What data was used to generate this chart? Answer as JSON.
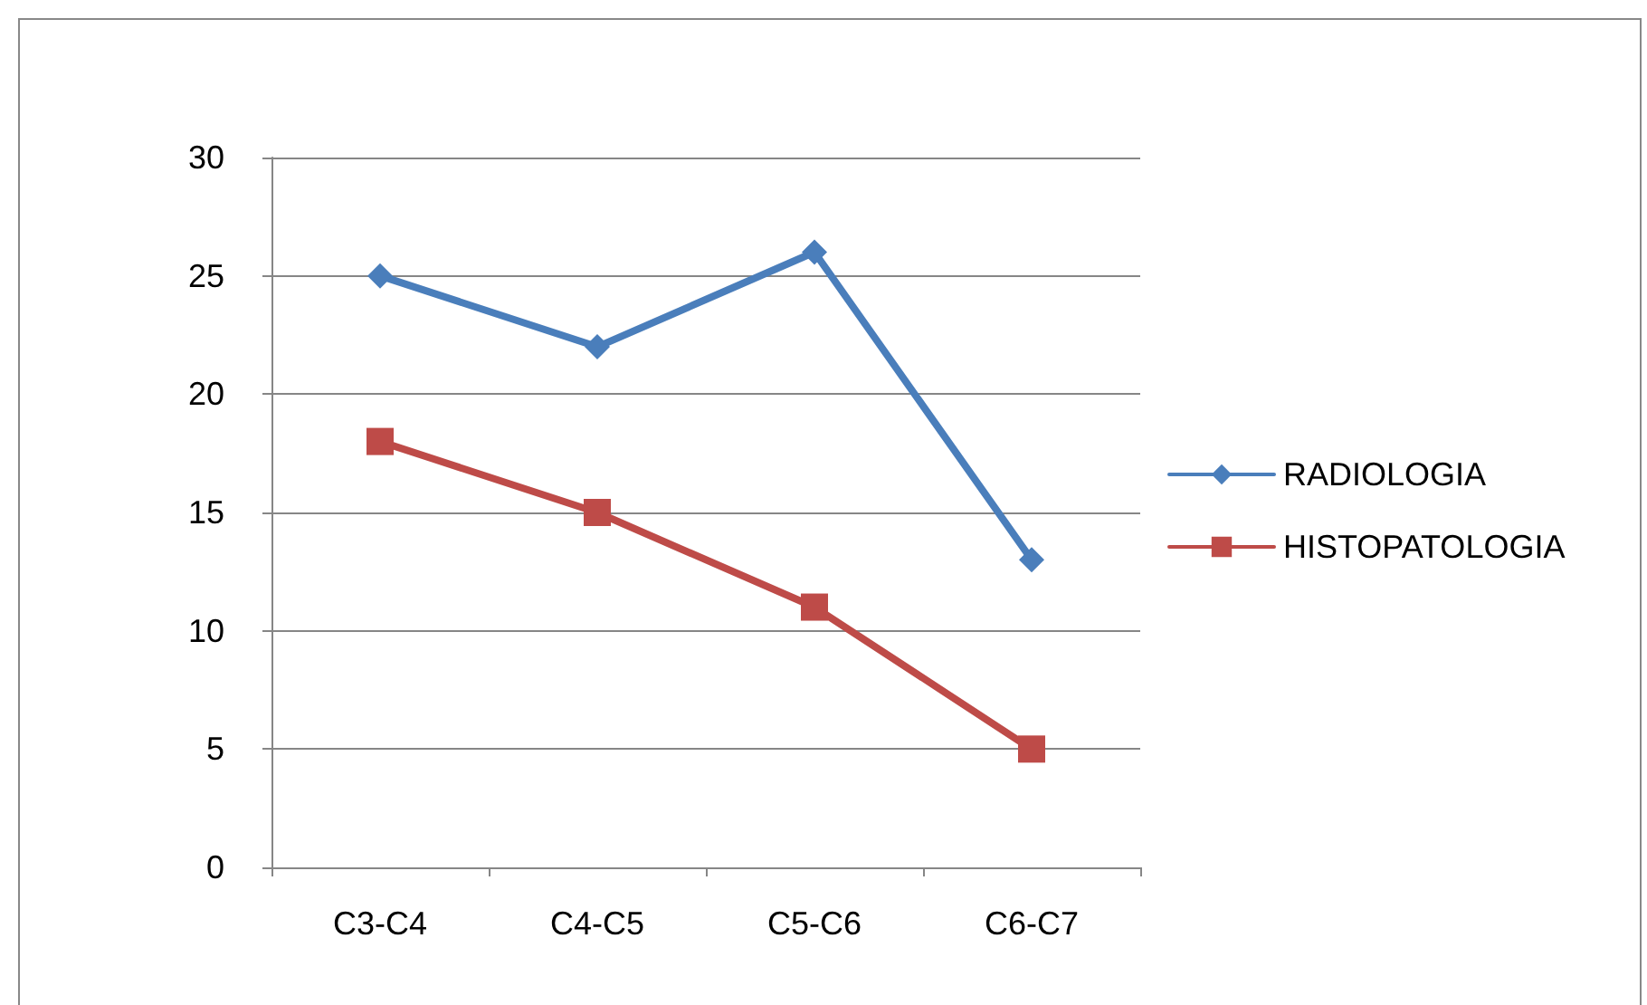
{
  "chart_data": {
    "type": "line",
    "categories": [
      "C3-C4",
      "C4-C5",
      "C5-C6",
      "C6-C7"
    ],
    "series": [
      {
        "name": "RADIOLOGIA",
        "color": "#4a7ebb",
        "marker": "diamond",
        "values": [
          25,
          22,
          26,
          13
        ]
      },
      {
        "name": "HISTOPATOLOGIA",
        "color": "#be4b48",
        "marker": "square",
        "values": [
          18,
          15,
          11,
          5
        ]
      }
    ],
    "ylim": [
      0,
      30
    ],
    "yticks": [
      0,
      5,
      10,
      15,
      20,
      25,
      30
    ],
    "grid": "y",
    "legend": "right",
    "line_style": "solid"
  }
}
